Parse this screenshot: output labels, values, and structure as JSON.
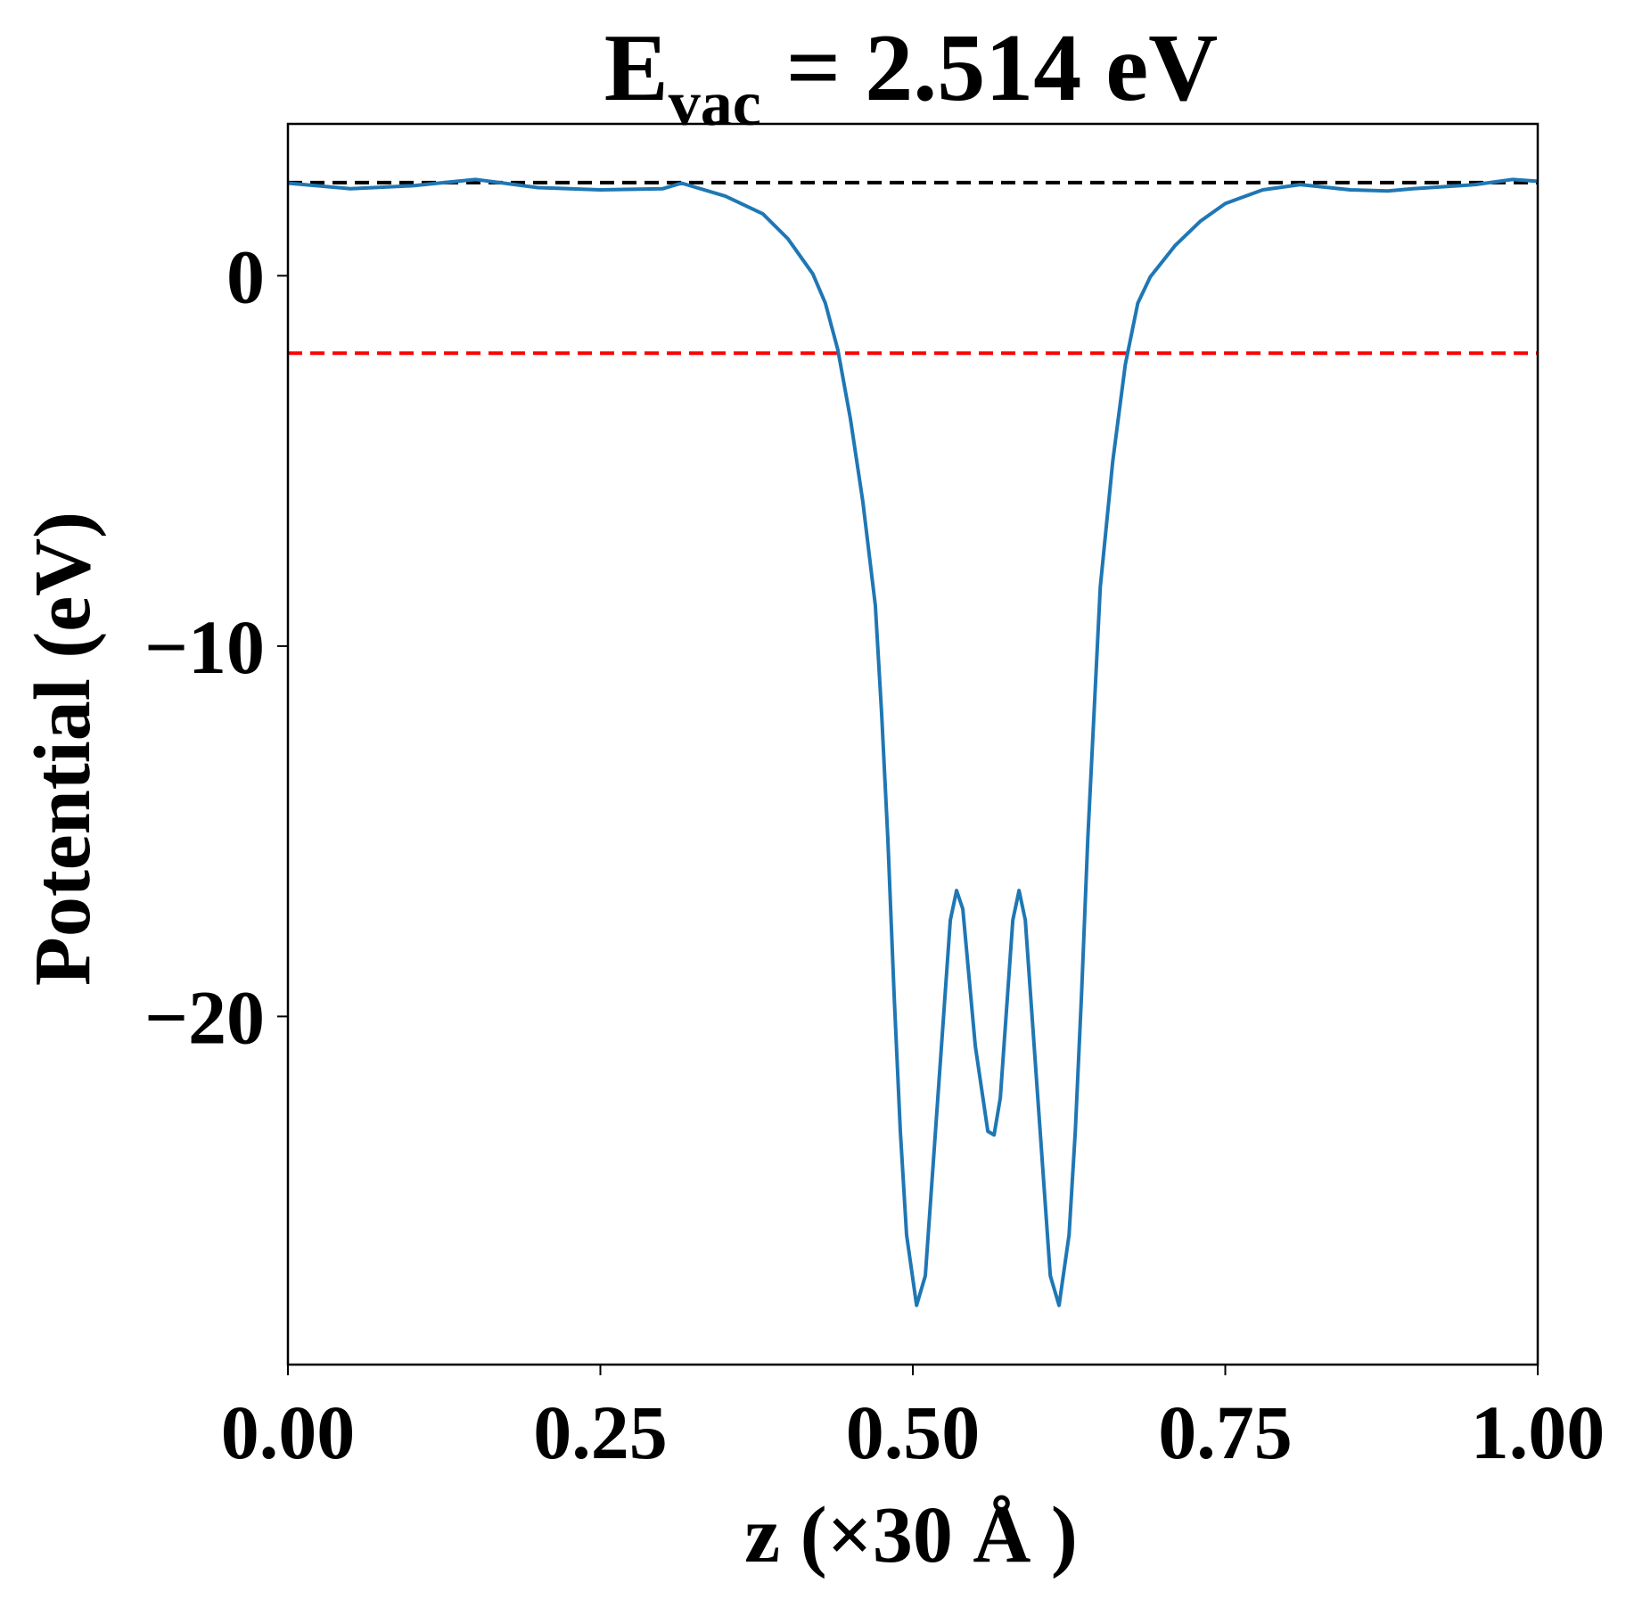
{
  "chart_data": {
    "type": "line",
    "title": {
      "main": "E",
      "sub": "vac",
      "rest": "= 2.514 eV"
    },
    "xlabel": "z (×30 Å )",
    "ylabel": "Potential (eV)",
    "xlim": [
      0,
      1
    ],
    "ylim": [
      -29.4,
      4.1
    ],
    "xticks": [
      {
        "value": 0,
        "label": "0.00"
      },
      {
        "value": 0.25,
        "label": "0.25"
      },
      {
        "value": 0.5,
        "label": "0.50"
      },
      {
        "value": 0.75,
        "label": "0.75"
      },
      {
        "value": 1,
        "label": "1.00"
      }
    ],
    "yticks": [
      0,
      {
        "value": -10,
        "label": "−10"
      },
      {
        "value": -20,
        "label": "−20"
      }
    ],
    "x": [
      0,
      0.05,
      0.1,
      0.15,
      0.2,
      0.25,
      0.3,
      0.315,
      0.35,
      0.38,
      0.4,
      0.42,
      0.43,
      0.44,
      0.45,
      0.46,
      0.47,
      0.475,
      0.48,
      0.485,
      0.49,
      0.495,
      0.503,
      0.51,
      0.52,
      0.53,
      0.535,
      0.54,
      0.55,
      0.56,
      0.565,
      0.57,
      0.58,
      0.585,
      0.59,
      0.6,
      0.61,
      0.617,
      0.625,
      0.63,
      0.635,
      0.64,
      0.645,
      0.65,
      0.66,
      0.67,
      0.68,
      0.69,
      0.71,
      0.73,
      0.75,
      0.78,
      0.81,
      0.85,
      0.88,
      0.9,
      0.95,
      0.98,
      1.0
    ],
    "series": [
      {
        "color": "#1f77b4",
        "values": [
          2.5,
          2.35,
          2.43,
          2.6,
          2.38,
          2.32,
          2.35,
          2.5,
          2.15,
          1.67,
          1.0,
          0.05,
          -0.74,
          -2.0,
          -3.85,
          -6.1,
          -8.9,
          -11.8,
          -15.2,
          -19.4,
          -23.1,
          -25.9,
          -27.8,
          -27.0,
          -22.2,
          -17.4,
          -16.6,
          -17.1,
          -20.8,
          -23.1,
          -23.2,
          -22.2,
          -17.4,
          -16.6,
          -17.4,
          -22.2,
          -27.0,
          -27.8,
          -25.9,
          -23.1,
          -19.4,
          -15.2,
          -11.8,
          -8.4,
          -5.0,
          -2.4,
          -0.74,
          -0.03,
          0.82,
          1.47,
          1.95,
          2.32,
          2.46,
          2.32,
          2.29,
          2.35,
          2.46,
          2.6,
          2.55
        ]
      }
    ],
    "hlines": [
      {
        "value": 2.514,
        "color": "#000000"
      },
      {
        "value": -2.09,
        "color": "#ff0000"
      }
    ]
  }
}
